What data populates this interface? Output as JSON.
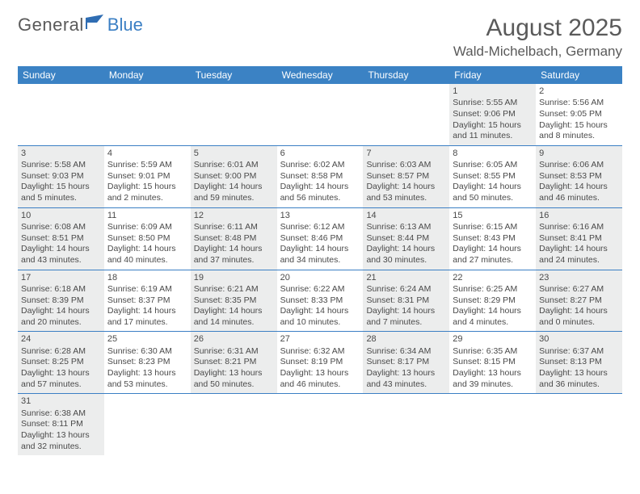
{
  "logo": {
    "text1": "General",
    "text2": "Blue"
  },
  "title": "August 2025",
  "location": "Wald-Michelbach, Germany",
  "colors": {
    "header_bg": "#3b82c4",
    "shaded_cell": "#eceded",
    "rule": "#3b7fc4",
    "text": "#4a4a4a",
    "logo_blue": "#3b7fc4"
  },
  "dayNames": [
    "Sunday",
    "Monday",
    "Tuesday",
    "Wednesday",
    "Thursday",
    "Friday",
    "Saturday"
  ],
  "weeks": [
    [
      {
        "empty": true,
        "shaded": false
      },
      {
        "empty": true,
        "shaded": false
      },
      {
        "empty": true,
        "shaded": false
      },
      {
        "empty": true,
        "shaded": false
      },
      {
        "empty": true,
        "shaded": false
      },
      {
        "day": "1",
        "shaded": true,
        "sunrise": "Sunrise: 5:55 AM",
        "sunset": "Sunset: 9:06 PM",
        "daylight1": "Daylight: 15 hours",
        "daylight2": "and 11 minutes."
      },
      {
        "day": "2",
        "shaded": false,
        "sunrise": "Sunrise: 5:56 AM",
        "sunset": "Sunset: 9:05 PM",
        "daylight1": "Daylight: 15 hours",
        "daylight2": "and 8 minutes."
      }
    ],
    [
      {
        "day": "3",
        "shaded": true,
        "sunrise": "Sunrise: 5:58 AM",
        "sunset": "Sunset: 9:03 PM",
        "daylight1": "Daylight: 15 hours",
        "daylight2": "and 5 minutes."
      },
      {
        "day": "4",
        "shaded": false,
        "sunrise": "Sunrise: 5:59 AM",
        "sunset": "Sunset: 9:01 PM",
        "daylight1": "Daylight: 15 hours",
        "daylight2": "and 2 minutes."
      },
      {
        "day": "5",
        "shaded": true,
        "sunrise": "Sunrise: 6:01 AM",
        "sunset": "Sunset: 9:00 PM",
        "daylight1": "Daylight: 14 hours",
        "daylight2": "and 59 minutes."
      },
      {
        "day": "6",
        "shaded": false,
        "sunrise": "Sunrise: 6:02 AM",
        "sunset": "Sunset: 8:58 PM",
        "daylight1": "Daylight: 14 hours",
        "daylight2": "and 56 minutes."
      },
      {
        "day": "7",
        "shaded": true,
        "sunrise": "Sunrise: 6:03 AM",
        "sunset": "Sunset: 8:57 PM",
        "daylight1": "Daylight: 14 hours",
        "daylight2": "and 53 minutes."
      },
      {
        "day": "8",
        "shaded": false,
        "sunrise": "Sunrise: 6:05 AM",
        "sunset": "Sunset: 8:55 PM",
        "daylight1": "Daylight: 14 hours",
        "daylight2": "and 50 minutes."
      },
      {
        "day": "9",
        "shaded": true,
        "sunrise": "Sunrise: 6:06 AM",
        "sunset": "Sunset: 8:53 PM",
        "daylight1": "Daylight: 14 hours",
        "daylight2": "and 46 minutes."
      }
    ],
    [
      {
        "day": "10",
        "shaded": true,
        "sunrise": "Sunrise: 6:08 AM",
        "sunset": "Sunset: 8:51 PM",
        "daylight1": "Daylight: 14 hours",
        "daylight2": "and 43 minutes."
      },
      {
        "day": "11",
        "shaded": false,
        "sunrise": "Sunrise: 6:09 AM",
        "sunset": "Sunset: 8:50 PM",
        "daylight1": "Daylight: 14 hours",
        "daylight2": "and 40 minutes."
      },
      {
        "day": "12",
        "shaded": true,
        "sunrise": "Sunrise: 6:11 AM",
        "sunset": "Sunset: 8:48 PM",
        "daylight1": "Daylight: 14 hours",
        "daylight2": "and 37 minutes."
      },
      {
        "day": "13",
        "shaded": false,
        "sunrise": "Sunrise: 6:12 AM",
        "sunset": "Sunset: 8:46 PM",
        "daylight1": "Daylight: 14 hours",
        "daylight2": "and 34 minutes."
      },
      {
        "day": "14",
        "shaded": true,
        "sunrise": "Sunrise: 6:13 AM",
        "sunset": "Sunset: 8:44 PM",
        "daylight1": "Daylight: 14 hours",
        "daylight2": "and 30 minutes."
      },
      {
        "day": "15",
        "shaded": false,
        "sunrise": "Sunrise: 6:15 AM",
        "sunset": "Sunset: 8:43 PM",
        "daylight1": "Daylight: 14 hours",
        "daylight2": "and 27 minutes."
      },
      {
        "day": "16",
        "shaded": true,
        "sunrise": "Sunrise: 6:16 AM",
        "sunset": "Sunset: 8:41 PM",
        "daylight1": "Daylight: 14 hours",
        "daylight2": "and 24 minutes."
      }
    ],
    [
      {
        "day": "17",
        "shaded": true,
        "sunrise": "Sunrise: 6:18 AM",
        "sunset": "Sunset: 8:39 PM",
        "daylight1": "Daylight: 14 hours",
        "daylight2": "and 20 minutes."
      },
      {
        "day": "18",
        "shaded": false,
        "sunrise": "Sunrise: 6:19 AM",
        "sunset": "Sunset: 8:37 PM",
        "daylight1": "Daylight: 14 hours",
        "daylight2": "and 17 minutes."
      },
      {
        "day": "19",
        "shaded": true,
        "sunrise": "Sunrise: 6:21 AM",
        "sunset": "Sunset: 8:35 PM",
        "daylight1": "Daylight: 14 hours",
        "daylight2": "and 14 minutes."
      },
      {
        "day": "20",
        "shaded": false,
        "sunrise": "Sunrise: 6:22 AM",
        "sunset": "Sunset: 8:33 PM",
        "daylight1": "Daylight: 14 hours",
        "daylight2": "and 10 minutes."
      },
      {
        "day": "21",
        "shaded": true,
        "sunrise": "Sunrise: 6:24 AM",
        "sunset": "Sunset: 8:31 PM",
        "daylight1": "Daylight: 14 hours",
        "daylight2": "and 7 minutes."
      },
      {
        "day": "22",
        "shaded": false,
        "sunrise": "Sunrise: 6:25 AM",
        "sunset": "Sunset: 8:29 PM",
        "daylight1": "Daylight: 14 hours",
        "daylight2": "and 4 minutes."
      },
      {
        "day": "23",
        "shaded": true,
        "sunrise": "Sunrise: 6:27 AM",
        "sunset": "Sunset: 8:27 PM",
        "daylight1": "Daylight: 14 hours",
        "daylight2": "and 0 minutes."
      }
    ],
    [
      {
        "day": "24",
        "shaded": true,
        "sunrise": "Sunrise: 6:28 AM",
        "sunset": "Sunset: 8:25 PM",
        "daylight1": "Daylight: 13 hours",
        "daylight2": "and 57 minutes."
      },
      {
        "day": "25",
        "shaded": false,
        "sunrise": "Sunrise: 6:30 AM",
        "sunset": "Sunset: 8:23 PM",
        "daylight1": "Daylight: 13 hours",
        "daylight2": "and 53 minutes."
      },
      {
        "day": "26",
        "shaded": true,
        "sunrise": "Sunrise: 6:31 AM",
        "sunset": "Sunset: 8:21 PM",
        "daylight1": "Daylight: 13 hours",
        "daylight2": "and 50 minutes."
      },
      {
        "day": "27",
        "shaded": false,
        "sunrise": "Sunrise: 6:32 AM",
        "sunset": "Sunset: 8:19 PM",
        "daylight1": "Daylight: 13 hours",
        "daylight2": "and 46 minutes."
      },
      {
        "day": "28",
        "shaded": true,
        "sunrise": "Sunrise: 6:34 AM",
        "sunset": "Sunset: 8:17 PM",
        "daylight1": "Daylight: 13 hours",
        "daylight2": "and 43 minutes."
      },
      {
        "day": "29",
        "shaded": false,
        "sunrise": "Sunrise: 6:35 AM",
        "sunset": "Sunset: 8:15 PM",
        "daylight1": "Daylight: 13 hours",
        "daylight2": "and 39 minutes."
      },
      {
        "day": "30",
        "shaded": true,
        "sunrise": "Sunrise: 6:37 AM",
        "sunset": "Sunset: 8:13 PM",
        "daylight1": "Daylight: 13 hours",
        "daylight2": "and 36 minutes."
      }
    ],
    [
      {
        "day": "31",
        "shaded": true,
        "sunrise": "Sunrise: 6:38 AM",
        "sunset": "Sunset: 8:11 PM",
        "daylight1": "Daylight: 13 hours",
        "daylight2": "and 32 minutes."
      },
      {
        "empty": true,
        "shaded": false
      },
      {
        "empty": true,
        "shaded": false
      },
      {
        "empty": true,
        "shaded": false
      },
      {
        "empty": true,
        "shaded": false
      },
      {
        "empty": true,
        "shaded": false
      },
      {
        "empty": true,
        "shaded": false
      }
    ]
  ]
}
